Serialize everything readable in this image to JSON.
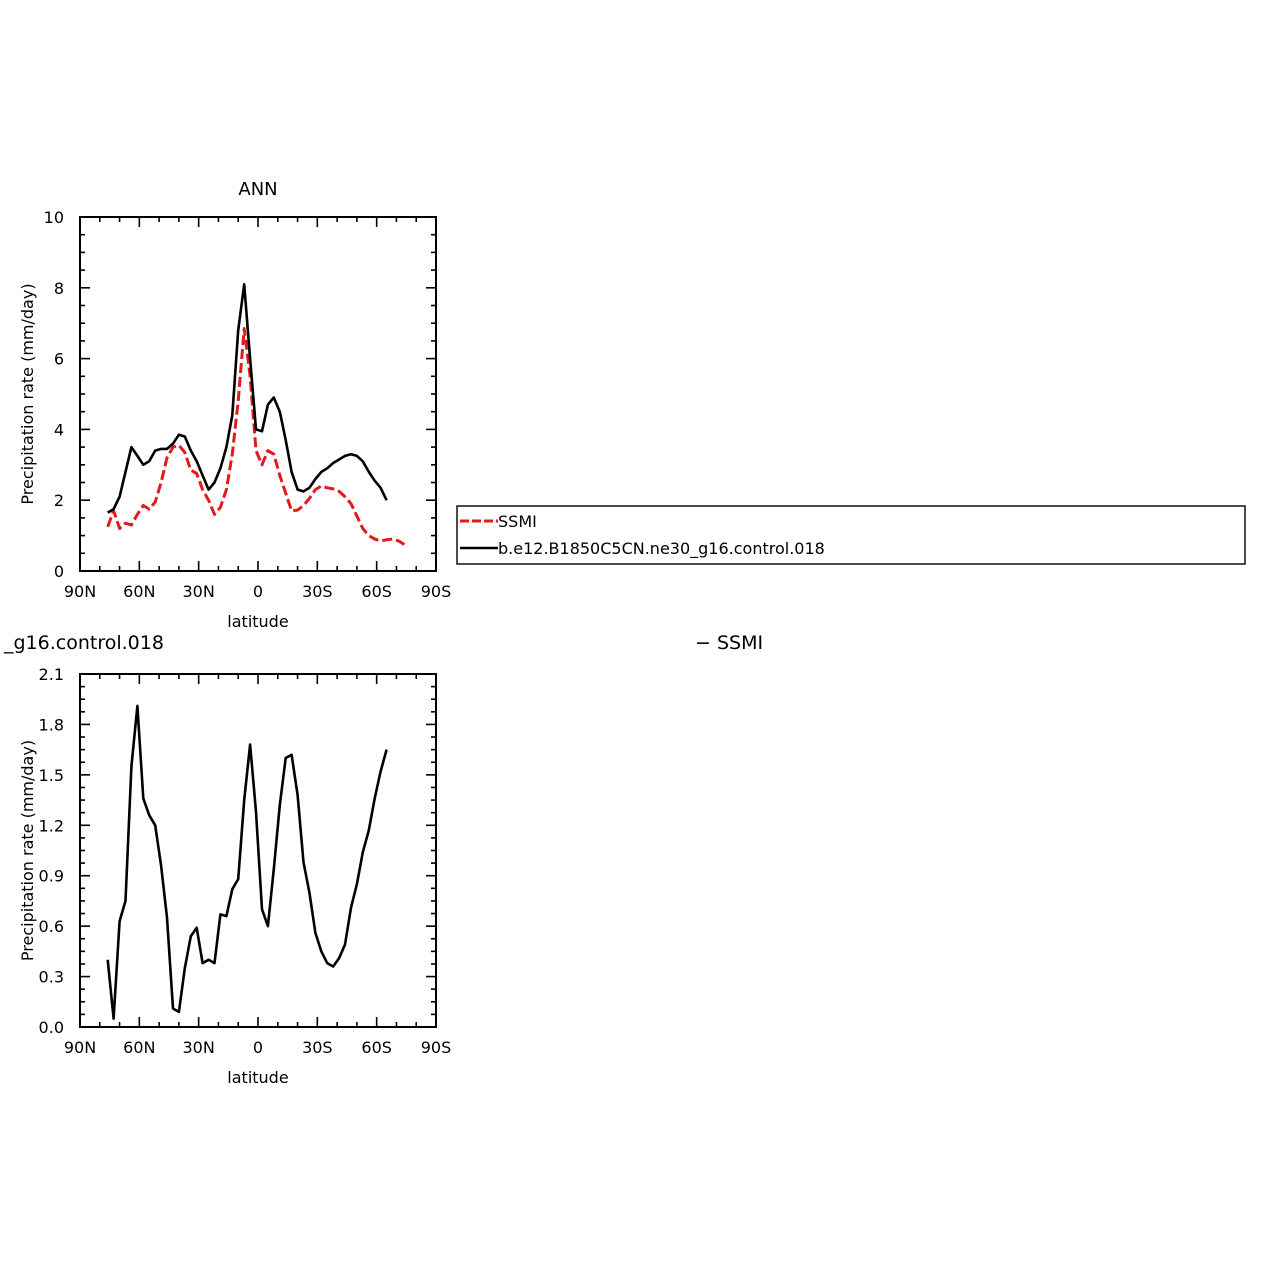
{
  "chart_data": [
    {
      "type": "line",
      "title": "ANN",
      "xlabel": "latitude",
      "ylabel": "Precipitation rate (mm/day)",
      "xlim": [
        90,
        -90
      ],
      "ylim": [
        0,
        10
      ],
      "xticks": [
        90,
        60,
        30,
        0,
        -30,
        -60,
        -90
      ],
      "xtick_labels": [
        "90N",
        "60N",
        "30N",
        "0",
        "30S",
        "60S",
        "90S"
      ],
      "yticks": [
        0,
        2,
        4,
        6,
        8,
        10
      ],
      "ytick_labels": [
        "0",
        "2",
        "4",
        "6",
        "8",
        "10"
      ],
      "grid": false,
      "legend": {
        "placement": "right",
        "entries": [
          {
            "name": "SSMI",
            "color": "#e31a1c",
            "dash": "dashed"
          },
          {
            "name": "b.e12.B1850C5CN.ne30_g16.control.018",
            "color": "#000000",
            "dash": "solid"
          }
        ]
      },
      "series": [
        {
          "name": "SSMI",
          "color": "#e31a1c",
          "style": "dashed",
          "x": [
            76,
            73,
            70,
            67,
            64,
            61,
            58,
            55,
            52,
            49,
            46,
            43,
            40,
            37,
            34,
            31,
            28,
            25,
            22,
            19,
            16,
            13,
            10,
            7,
            4,
            1,
            -2,
            -5,
            -8,
            -11,
            -14,
            -17,
            -20,
            -23,
            -26,
            -29,
            -32,
            -35,
            -38,
            -41,
            -44,
            -47,
            -50,
            -53,
            -56,
            -59,
            -62,
            -65,
            -68,
            -71,
            -74
          ],
          "y": [
            1.25,
            1.7,
            1.2,
            1.35,
            1.3,
            1.6,
            1.85,
            1.75,
            1.95,
            2.5,
            3.2,
            3.5,
            3.55,
            3.35,
            2.85,
            2.75,
            2.3,
            2.0,
            1.6,
            1.8,
            2.3,
            3.3,
            4.8,
            6.85,
            5.5,
            3.4,
            3.0,
            3.4,
            3.3,
            2.7,
            2.2,
            1.7,
            1.72,
            1.85,
            2.05,
            2.3,
            2.4,
            2.35,
            2.32,
            2.25,
            2.1,
            1.9,
            1.55,
            1.2,
            1.0,
            0.9,
            0.85,
            0.88,
            0.9,
            0.85,
            0.75
          ]
        },
        {
          "name": "b.e12.B1850C5CN.ne30_g16.control.018",
          "color": "#000000",
          "style": "solid",
          "x": [
            76,
            73,
            70,
            67,
            64,
            61,
            58,
            55,
            52,
            49,
            46,
            43,
            40,
            37,
            34,
            31,
            28,
            25,
            22,
            19,
            16,
            13,
            10,
            7,
            4,
            1,
            -2,
            -5,
            -8,
            -11,
            -14,
            -17,
            -20,
            -23,
            -26,
            -29,
            -32,
            -35,
            -38,
            -41,
            -44,
            -47,
            -50,
            -53,
            -56,
            -59,
            -62,
            -65
          ],
          "y": [
            1.65,
            1.75,
            2.1,
            2.8,
            3.5,
            3.25,
            3.0,
            3.1,
            3.4,
            3.45,
            3.45,
            3.6,
            3.85,
            3.8,
            3.4,
            3.1,
            2.7,
            2.3,
            2.5,
            2.9,
            3.5,
            4.4,
            6.8,
            8.1,
            6.0,
            4.0,
            3.95,
            4.7,
            4.9,
            4.5,
            3.7,
            2.8,
            2.3,
            2.25,
            2.35,
            2.6,
            2.8,
            2.9,
            3.05,
            3.15,
            3.25,
            3.3,
            3.25,
            3.1,
            2.8,
            2.55,
            2.35,
            2.0
          ]
        }
      ]
    },
    {
      "type": "line",
      "title": "_g16.control.018",
      "right_title": "− SSMI",
      "xlabel": "latitude",
      "ylabel": "Precipitation rate (mm/day)",
      "xlim": [
        90,
        -90
      ],
      "ylim": [
        0,
        2.1
      ],
      "xticks": [
        90,
        60,
        30,
        0,
        -30,
        -60,
        -90
      ],
      "xtick_labels": [
        "90N",
        "60N",
        "30N",
        "0",
        "30S",
        "60S",
        "90S"
      ],
      "yticks": [
        0,
        0.3,
        0.6,
        0.9,
        1.2,
        1.5,
        1.8,
        2.1
      ],
      "ytick_labels": [
        "0.0",
        "0.3",
        "0.6",
        "0.9",
        "1.2",
        "1.5",
        "1.8",
        "2.1"
      ],
      "grid": false,
      "series": [
        {
          "color": "#000000",
          "style": "solid",
          "x": [
            76,
            73,
            70,
            67,
            64,
            61,
            58,
            55,
            52,
            49,
            46,
            43,
            40,
            37,
            34,
            31,
            28,
            25,
            22,
            19,
            16,
            13,
            10,
            7,
            4,
            1,
            -2,
            -5,
            -8,
            -11,
            -14,
            -17,
            -20,
            -23,
            -26,
            -29,
            -32,
            -35,
            -38,
            -41,
            -44,
            -47,
            -50,
            -53,
            -56,
            -59,
            -62,
            -65
          ],
          "y": [
            0.4,
            0.05,
            0.63,
            0.75,
            1.55,
            1.91,
            1.36,
            1.26,
            1.2,
            0.96,
            0.65,
            0.11,
            0.09,
            0.35,
            0.54,
            0.59,
            0.38,
            0.4,
            0.38,
            0.67,
            0.66,
            0.82,
            0.88,
            1.35,
            1.68,
            1.28,
            0.7,
            0.6,
            0.94,
            1.32,
            1.6,
            1.62,
            1.38,
            0.98,
            0.8,
            0.56,
            0.45,
            0.38,
            0.36,
            0.41,
            0.49,
            0.71,
            0.85,
            1.04,
            1.17,
            1.36,
            1.52,
            1.65
          ]
        }
      ]
    }
  ]
}
